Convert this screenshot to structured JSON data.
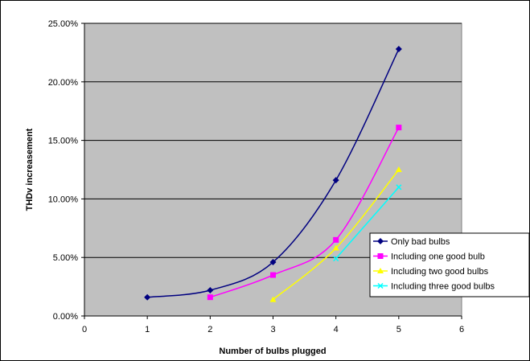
{
  "chart_data": {
    "type": "line",
    "xlabel": "Number of bulbs plugged",
    "ylabel": "THDv increasement",
    "xlim": [
      0,
      6
    ],
    "ylim": [
      0,
      0.25
    ],
    "x_ticks": [
      "0",
      "1",
      "2",
      "3",
      "4",
      "5",
      "6"
    ],
    "y_ticks": [
      "0.00%",
      "5.00%",
      "10.00%",
      "15.00%",
      "20.00%",
      "25.00%"
    ],
    "grid": "horizontal",
    "legend_position": "right",
    "series": [
      {
        "name": "Only bad bulbs",
        "color": "#000080",
        "marker": "diamond",
        "x": [
          1,
          2,
          3,
          4,
          5
        ],
        "y": [
          0.016,
          0.022,
          0.046,
          0.116,
          0.228
        ]
      },
      {
        "name": "Including one good bulb",
        "color": "#ff00ff",
        "marker": "square",
        "x": [
          2,
          3,
          4,
          5
        ],
        "y": [
          0.016,
          0.035,
          0.065,
          0.161
        ]
      },
      {
        "name": "Including two good bulbs",
        "color": "#ffff00",
        "marker": "triangle",
        "x": [
          3,
          4,
          5
        ],
        "y": [
          0.014,
          0.058,
          0.125
        ]
      },
      {
        "name": "Including three good bulbs",
        "color": "#00ffff",
        "marker": "x",
        "x": [
          4,
          5
        ],
        "y": [
          0.049,
          0.11
        ]
      }
    ]
  }
}
